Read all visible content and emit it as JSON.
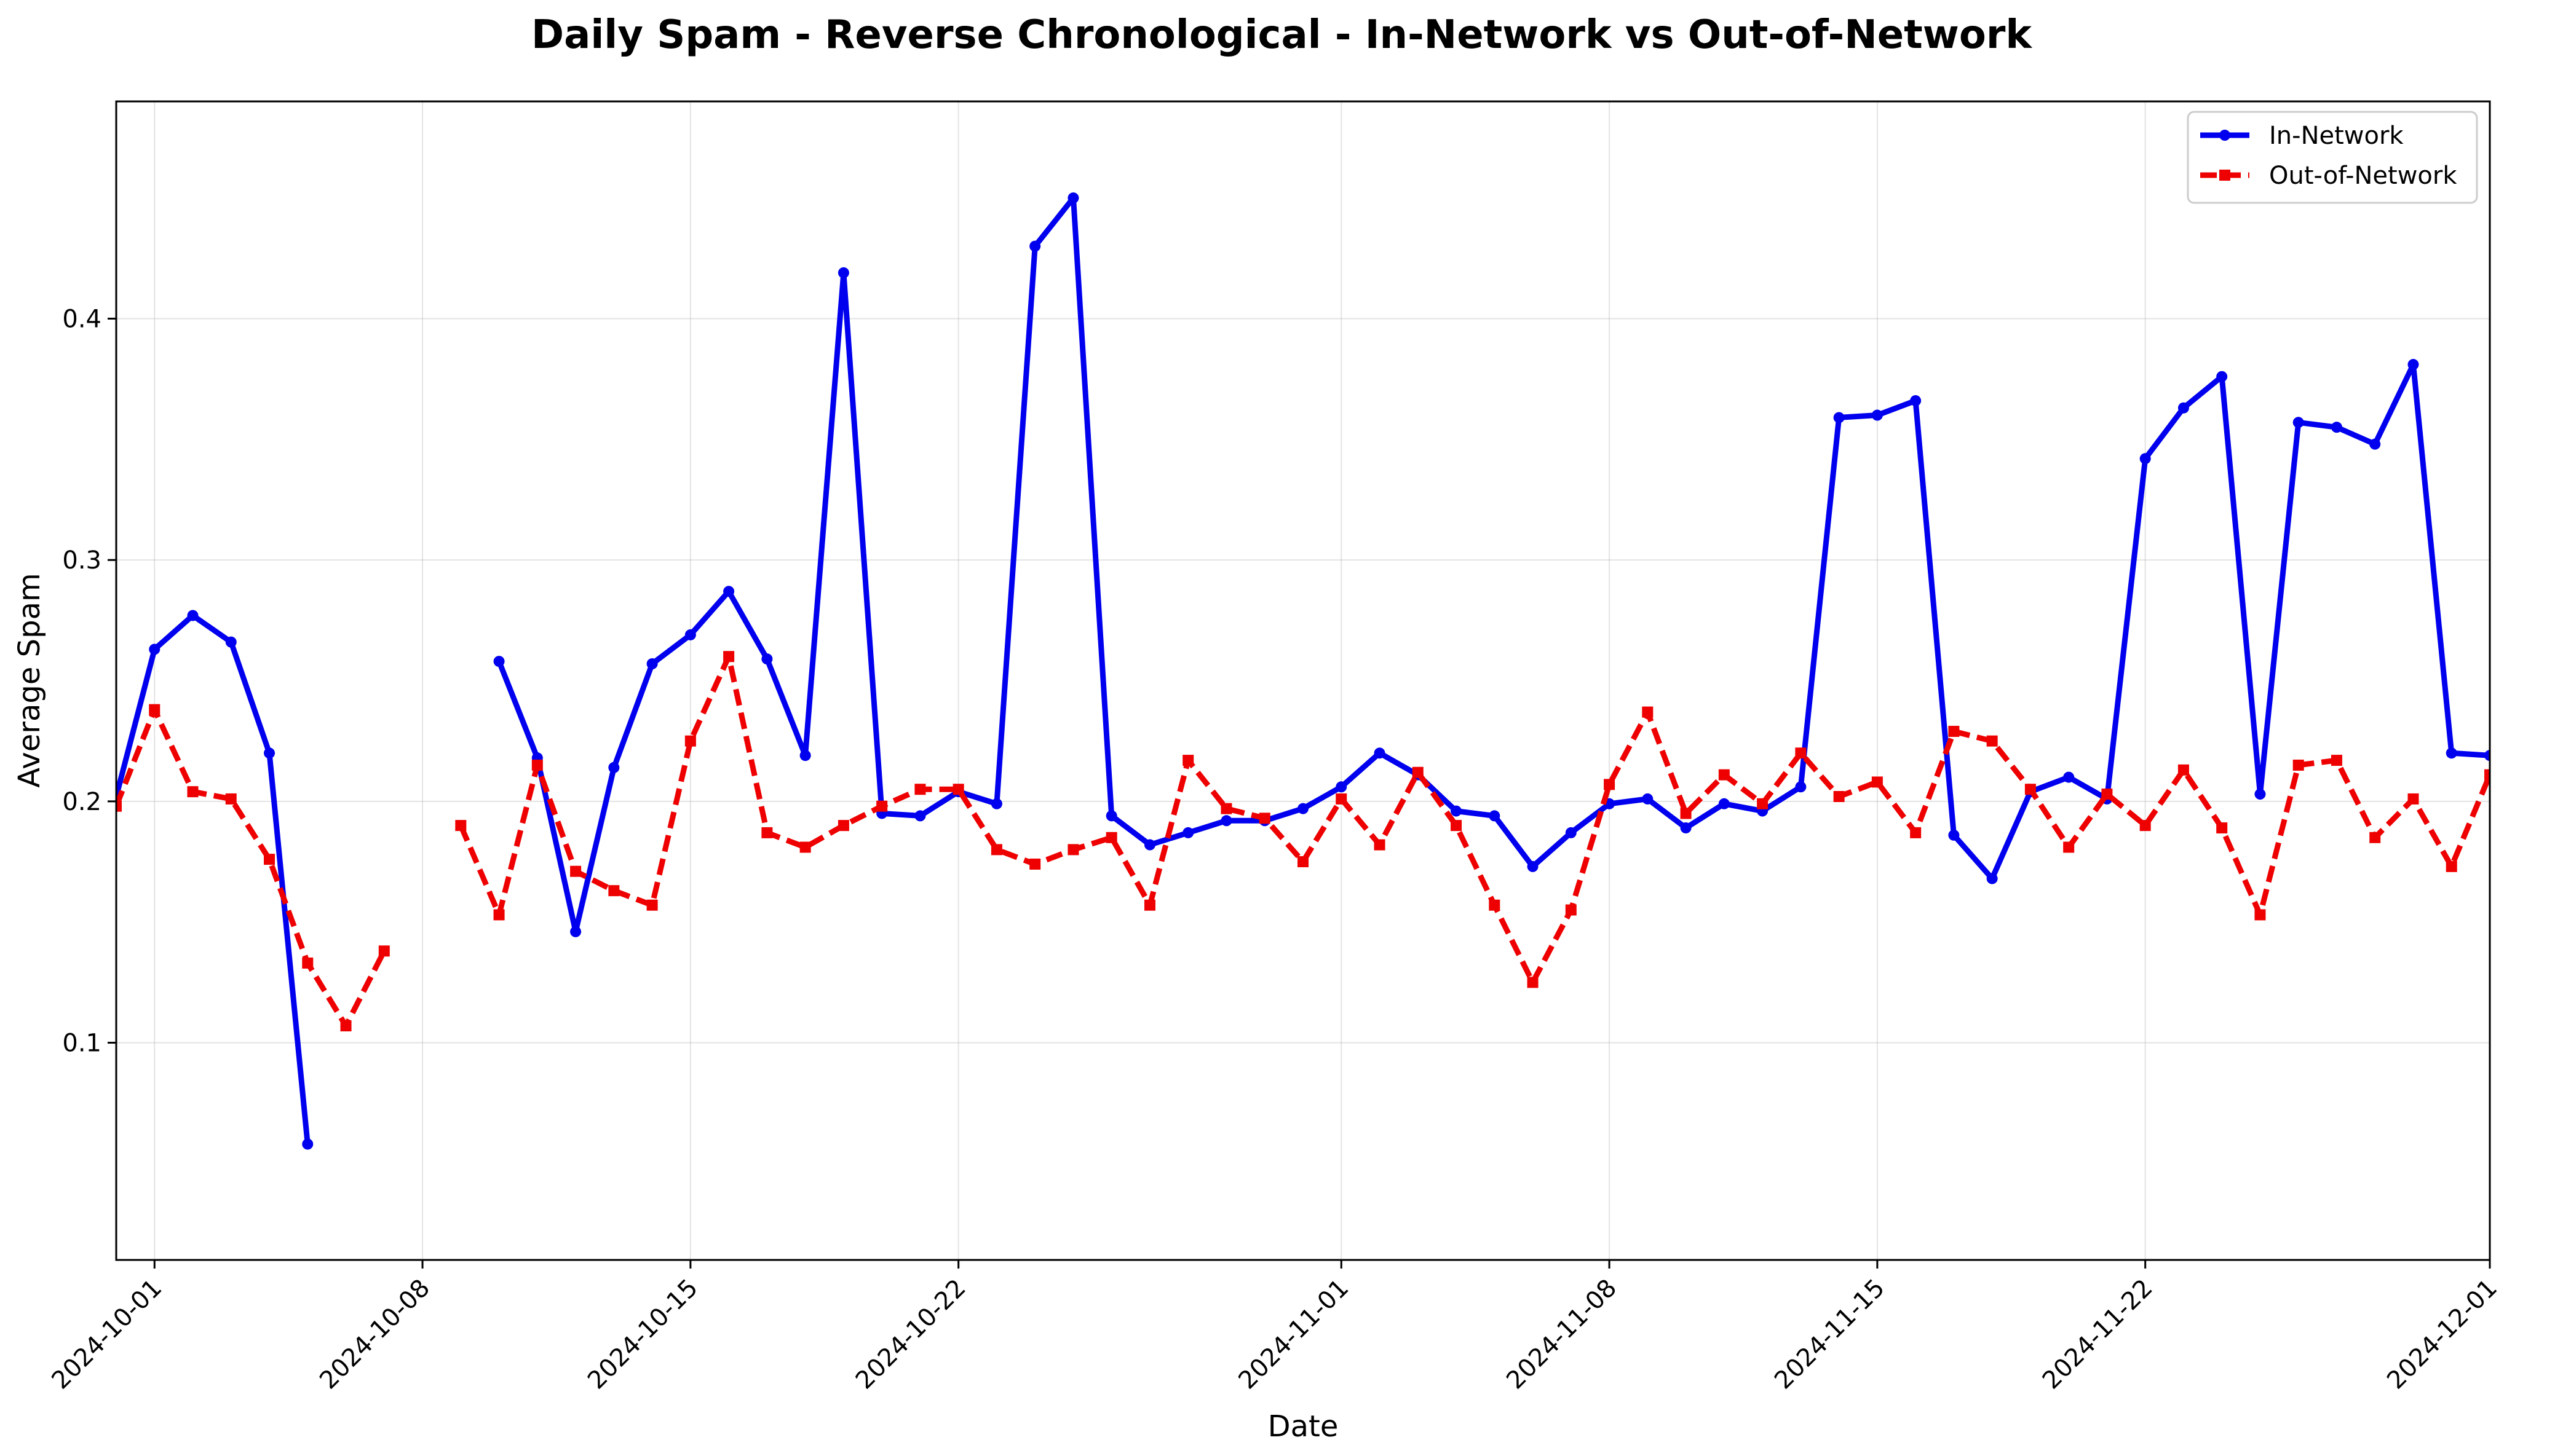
{
  "chart_data": {
    "type": "line",
    "title": "Daily Spam - Reverse Chronological - In-Network vs Out-of-Network",
    "xlabel": "Date",
    "ylabel": "Average Spam",
    "x_start": "2024-09-30",
    "xlim": [
      "2024-09-30",
      "2024-12-01"
    ],
    "ylim": [
      0.01,
      0.49
    ],
    "x_ticks": [
      "2024-10-01",
      "2024-10-08",
      "2024-10-15",
      "2024-10-22",
      "2024-11-01",
      "2024-11-08",
      "2024-11-15",
      "2024-11-22",
      "2024-12-01"
    ],
    "y_ticks": [
      0.1,
      0.2,
      0.3,
      0.4
    ],
    "y_tick_labels": [
      "0.1",
      "0.2",
      "0.3",
      "0.4"
    ],
    "grid": true,
    "legend_position": "top-right",
    "series": [
      {
        "name": "In-Network",
        "color": "#0000ee",
        "style": "solid",
        "marker": "circle",
        "values": [
          0.202,
          0.263,
          0.277,
          0.266,
          0.22,
          0.058,
          null,
          null,
          null,
          null,
          0.258,
          0.218,
          0.146,
          0.214,
          0.257,
          0.269,
          0.287,
          0.259,
          0.219,
          0.419,
          0.195,
          0.194,
          0.204,
          0.199,
          0.43,
          0.45,
          0.194,
          0.182,
          0.187,
          0.192,
          0.192,
          0.197,
          0.206,
          0.22,
          0.211,
          0.196,
          0.194,
          0.173,
          0.187,
          0.199,
          0.201,
          0.189,
          0.199,
          0.196,
          0.206,
          0.359,
          0.36,
          0.366,
          0.186,
          0.168,
          0.204,
          0.21,
          0.201,
          0.342,
          0.363,
          0.376,
          0.203,
          0.357,
          0.355,
          0.348,
          0.381,
          0.22,
          0.219
        ]
      },
      {
        "name": "Out-of-Network",
        "color": "#ee0000",
        "style": "dashed",
        "marker": "square",
        "values": [
          0.198,
          0.238,
          0.204,
          0.201,
          0.176,
          0.133,
          0.107,
          0.138,
          null,
          0.19,
          0.153,
          0.215,
          0.171,
          0.163,
          0.157,
          0.225,
          0.26,
          0.187,
          0.181,
          0.19,
          0.198,
          0.205,
          0.205,
          0.18,
          0.174,
          0.18,
          0.185,
          0.157,
          0.217,
          0.197,
          0.193,
          0.175,
          0.201,
          0.182,
          0.212,
          0.19,
          0.157,
          0.125,
          0.155,
          0.207,
          0.237,
          0.195,
          0.211,
          0.199,
          0.22,
          0.202,
          0.208,
          0.187,
          0.229,
          0.225,
          0.205,
          0.181,
          0.203,
          0.19,
          0.213,
          0.189,
          0.153,
          0.215,
          0.217,
          0.185,
          0.201,
          0.173,
          0.211
        ]
      }
    ]
  }
}
